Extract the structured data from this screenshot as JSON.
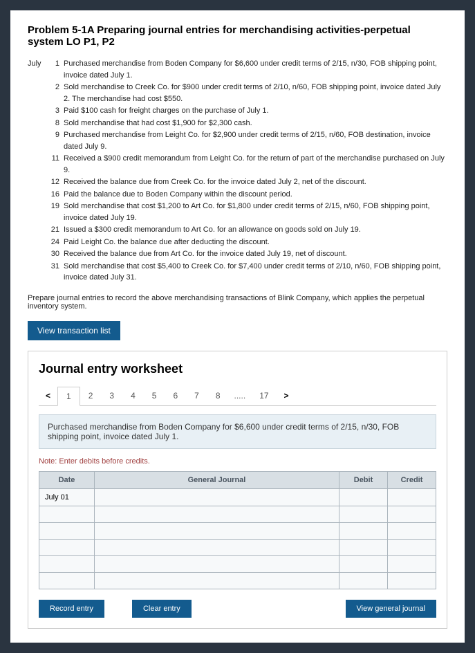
{
  "problem_title": "Problem 5-1A Preparing journal entries for merchandising activities-perpetual system LO P1, P2",
  "month_label": "July",
  "transactions": [
    {
      "day": "1",
      "text": "Purchased merchandise from Boden Company for $6,600 under credit terms of 2/15, n/30, FOB shipping point, invoice dated July 1."
    },
    {
      "day": "2",
      "text": "Sold merchandise to Creek Co. for $900 under credit terms of 2/10, n/60, FOB shipping point, invoice dated July 2. The merchandise had cost $550."
    },
    {
      "day": "3",
      "text": "Paid $100 cash for freight charges on the purchase of July 1."
    },
    {
      "day": "8",
      "text": "Sold merchandise that had cost $1,900 for $2,300 cash."
    },
    {
      "day": "9",
      "text": "Purchased merchandise from Leight Co. for $2,900 under credit terms of 2/15, n/60, FOB destination, invoice dated July 9."
    },
    {
      "day": "11",
      "text": "Received a $900 credit memorandum from Leight Co. for the return of part of the merchandise purchased on July 9."
    },
    {
      "day": "12",
      "text": "Received the balance due from Creek Co. for the invoice dated July 2, net of the discount."
    },
    {
      "day": "16",
      "text": "Paid the balance due to Boden Company within the discount period."
    },
    {
      "day": "19",
      "text": "Sold merchandise that cost $1,200 to Art Co. for $1,800 under credit terms of 2/15, n/60, FOB shipping point, invoice dated July 19."
    },
    {
      "day": "21",
      "text": "Issued a $300 credit memorandum to Art Co. for an allowance on goods sold on July 19."
    },
    {
      "day": "24",
      "text": "Paid Leight Co. the balance due after deducting the discount."
    },
    {
      "day": "30",
      "text": "Received the balance due from Art Co. for the invoice dated July 19, net of discount."
    },
    {
      "day": "31",
      "text": "Sold merchandise that cost $5,400 to Creek Co. for $7,400 under credit terms of 2/10, n/60, FOB shipping point, invoice dated July 31."
    }
  ],
  "instruction": "Prepare journal entries to record the above merchandising transactions of Blink Company, which applies the perpetual inventory system.",
  "buttons": {
    "view_list": "View transaction list",
    "record": "Record entry",
    "clear": "Clear entry",
    "view_journal": "View general journal"
  },
  "worksheet": {
    "title": "Journal entry worksheet",
    "arrow_left": "<",
    "arrow_right": ">",
    "tabs": [
      "1",
      "2",
      "3",
      "4",
      "5",
      "6",
      "7",
      "8"
    ],
    "tabs_dots": ".....",
    "tabs_last": "17",
    "prompt": "Purchased merchandise from Boden Company for $6,600 under credit terms of 2/15, n/30, FOB shipping point, invoice dated July 1.",
    "note": "Note: Enter debits before credits.",
    "headers": {
      "date": "Date",
      "gj": "General Journal",
      "debit": "Debit",
      "credit": "Credit"
    },
    "first_date": "July 01"
  }
}
